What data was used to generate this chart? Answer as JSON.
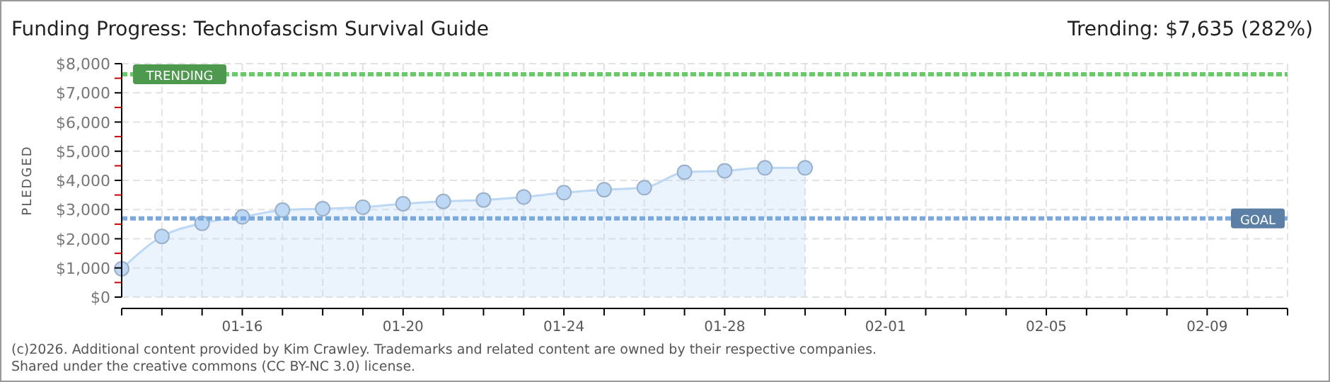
{
  "chart_data": {
    "type": "area",
    "title": "Funding Progress: Technofascism Survival Guide",
    "subtitle": "Trending: $7,635 (282%)",
    "ylabel": "PLEDGED",
    "x": [
      "--01-13",
      "--01-14",
      "--01-15",
      "--01-16",
      "--01-17",
      "--01-18",
      "--01-19",
      "--01-20",
      "--01-21",
      "--01-22",
      "--01-23",
      "--01-24",
      "--01-25",
      "--01-26",
      "--01-27",
      "--01-28",
      "--01-29",
      "--01-30"
    ],
    "series": [
      {
        "color": "#bcd8f5",
        "values": [
          970,
          2080,
          2530,
          2750,
          2980,
          3030,
          3080,
          3200,
          3280,
          3330,
          3430,
          3580,
          3680,
          3750,
          4280,
          4330,
          4430,
          4430
        ]
      }
    ],
    "xlim": [
      "--01-13",
      "--02-11"
    ],
    "xticks": [
      {
        "value": "--01-13",
        "label": null
      },
      {
        "value": "--01-14",
        "label": null
      },
      {
        "value": "--01-15",
        "label": null
      },
      {
        "value": "--01-16",
        "label": "01-16"
      },
      {
        "value": "--01-17",
        "label": null
      },
      {
        "value": "--01-18",
        "label": null
      },
      {
        "value": "--01-19",
        "label": null
      },
      {
        "value": "--01-20",
        "label": "01-20"
      },
      {
        "value": "--01-21",
        "label": null
      },
      {
        "value": "--01-22",
        "label": null
      },
      {
        "value": "--01-23",
        "label": null
      },
      {
        "value": "--01-24",
        "label": "01-24"
      },
      {
        "value": "--01-25",
        "label": null
      },
      {
        "value": "--01-26",
        "label": null
      },
      {
        "value": "--01-27",
        "label": null
      },
      {
        "value": "--01-28",
        "label": "01-28"
      },
      {
        "value": "--01-29",
        "label": null
      },
      {
        "value": "--01-30",
        "label": null
      },
      {
        "value": "--01-31",
        "label": null
      },
      {
        "value": "--02-01",
        "label": "02-01"
      },
      {
        "value": "--02-02",
        "label": null
      },
      {
        "value": "--02-03",
        "label": null
      },
      {
        "value": "--02-04",
        "label": null
      },
      {
        "value": "--02-05",
        "label": "02-05"
      },
      {
        "value": "--02-06",
        "label": null
      },
      {
        "value": "--02-07",
        "label": null
      },
      {
        "value": "--02-08",
        "label": null
      },
      {
        "value": "--02-09",
        "label": "02-09"
      },
      {
        "value": "--02-10",
        "label": null
      },
      {
        "value": "--02-11",
        "label": null
      }
    ],
    "ylim": [
      0,
      8000
    ],
    "yticks": [
      {
        "value": 0,
        "label": "$0"
      },
      {
        "value": 500,
        "label": null
      },
      {
        "value": 1000,
        "label": "$1,000"
      },
      {
        "value": 1500,
        "label": null
      },
      {
        "value": 2000,
        "label": "$2,000"
      },
      {
        "value": 2500,
        "label": null
      },
      {
        "value": 3000,
        "label": "$3,000"
      },
      {
        "value": 3500,
        "label": null
      },
      {
        "value": 4000,
        "label": "$4,000"
      },
      {
        "value": 4500,
        "label": null
      },
      {
        "value": 5000,
        "label": "$5,000"
      },
      {
        "value": 5500,
        "label": null
      },
      {
        "value": 6000,
        "label": "$6,000"
      },
      {
        "value": 6500,
        "label": null
      },
      {
        "value": 7000,
        "label": "$7,000"
      },
      {
        "value": 7500,
        "label": null
      },
      {
        "value": 8000,
        "label": "$8,000"
      }
    ],
    "ref_lines": [
      {
        "axis": "y",
        "value": 7635,
        "label": "TRENDING",
        "color": "#66cc66",
        "line_style": "dotted"
      },
      {
        "axis": "y",
        "value": 2700,
        "label": "GOAL",
        "color": "#7aa9dd",
        "line_style": "dotted"
      }
    ],
    "grid": true,
    "marker": "circle",
    "annotations": [
      "(c)2026. Additional content provided by Kim Crawley. Trademarks and related content are owned by their respective companies.",
      "Shared under the creative commons (CC BY-NC 3.0) license."
    ]
  }
}
